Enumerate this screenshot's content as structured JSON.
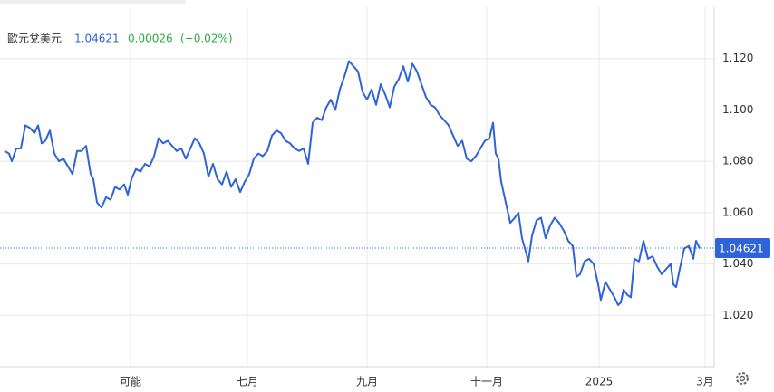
{
  "chart_data": {
    "type": "line",
    "title": "歐元兌美元",
    "last_price": 1.04621,
    "change": 0.00026,
    "change_pct": "(+0.02%)",
    "series": [
      {
        "name": "歐元兌美元",
        "color": "#2f63d8",
        "x": [
          5,
          10,
          13,
          18,
          23,
          28,
          33,
          38,
          42,
          46,
          50,
          55,
          60,
          65,
          70,
          75,
          80,
          85,
          90,
          95,
          100,
          103,
          107,
          112,
          117,
          122,
          127,
          132,
          137,
          141,
          145,
          150,
          155,
          160,
          165,
          170,
          175,
          180,
          185,
          190,
          195,
          200,
          205,
          210,
          215,
          220,
          225,
          230,
          235,
          240,
          245,
          250,
          255,
          260,
          265,
          270,
          275,
          280,
          285,
          290,
          295,
          300,
          305,
          310,
          315,
          320,
          325,
          330,
          335,
          340,
          345,
          350,
          355,
          360,
          365,
          370,
          375,
          380,
          385,
          390,
          395,
          400,
          405,
          410,
          415,
          420,
          425,
          430,
          435,
          440,
          445,
          450,
          455,
          460,
          465,
          470,
          475,
          480,
          485,
          490,
          495,
          500,
          505,
          510,
          515,
          520,
          525,
          530,
          535,
          540,
          544,
          547,
          550,
          553,
          558,
          563,
          568,
          572,
          576,
          580,
          583,
          587,
          592,
          597,
          602,
          607,
          612,
          617,
          622,
          627,
          632,
          636,
          640,
          645,
          650,
          655,
          660,
          663,
          668,
          673,
          678,
          682,
          685,
          688,
          692,
          696,
          700,
          705,
          710,
          715,
          720,
          725,
          730,
          735,
          740,
          743,
          746,
          750,
          755,
          760,
          765,
          768,
          772
        ],
        "values": [
          1.084,
          1.083,
          1.08,
          1.085,
          1.085,
          1.094,
          1.093,
          1.091,
          1.094,
          1.087,
          1.088,
          1.092,
          1.083,
          1.08,
          1.081,
          1.078,
          1.075,
          1.084,
          1.084,
          1.086,
          1.075,
          1.073,
          1.064,
          1.062,
          1.066,
          1.065,
          1.07,
          1.069,
          1.071,
          1.067,
          1.073,
          1.077,
          1.076,
          1.079,
          1.078,
          1.082,
          1.089,
          1.087,
          1.088,
          1.086,
          1.084,
          1.085,
          1.081,
          1.085,
          1.089,
          1.087,
          1.083,
          1.074,
          1.079,
          1.073,
          1.071,
          1.076,
          1.07,
          1.073,
          1.068,
          1.072,
          1.075,
          1.081,
          1.083,
          1.082,
          1.084,
          1.09,
          1.092,
          1.091,
          1.088,
          1.087,
          1.085,
          1.084,
          1.085,
          1.079,
          1.095,
          1.097,
          1.096,
          1.101,
          1.104,
          1.1,
          1.108,
          1.113,
          1.119,
          1.117,
          1.115,
          1.107,
          1.104,
          1.108,
          1.102,
          1.11,
          1.106,
          1.101,
          1.109,
          1.112,
          1.117,
          1.111,
          1.118,
          1.115,
          1.11,
          1.105,
          1.102,
          1.101,
          1.098,
          1.096,
          1.094,
          1.09,
          1.086,
          1.088,
          1.081,
          1.08,
          1.082,
          1.085,
          1.088,
          1.089,
          1.095,
          1.083,
          1.081,
          1.072,
          1.064,
          1.056,
          1.058,
          1.06,
          1.05,
          1.045,
          1.041,
          1.051,
          1.057,
          1.058,
          1.05,
          1.055,
          1.058,
          1.056,
          1.053,
          1.049,
          1.047,
          1.035,
          1.036,
          1.041,
          1.042,
          1.04,
          1.032,
          1.026,
          1.033,
          1.03,
          1.027,
          1.024,
          1.025,
          1.03,
          1.028,
          1.027,
          1.042,
          1.041,
          1.049,
          1.042,
          1.043,
          1.039,
          1.036,
          1.038,
          1.04,
          1.032,
          1.031,
          1.038,
          1.046,
          1.047,
          1.042,
          1.049,
          1.046
        ]
      }
    ],
    "xlim": [
      0,
      788
    ],
    "xticks": [
      {
        "value": 144,
        "label": "可能"
      },
      {
        "value": 273,
        "label": "七月"
      },
      {
        "value": 405,
        "label": "九月"
      },
      {
        "value": 537,
        "label": "十一月"
      },
      {
        "value": 661,
        "label": "2025"
      },
      {
        "value": 778,
        "label": "3月"
      }
    ],
    "ylim": [
      1.0,
      1.14
    ],
    "yticks": [
      {
        "value": 1.02,
        "label": "1.020"
      },
      {
        "value": 1.04,
        "label": "1.040"
      },
      {
        "value": 1.06,
        "label": "1.060"
      },
      {
        "value": 1.08,
        "label": "1.080"
      },
      {
        "value": 1.1,
        "label": "1.100"
      },
      {
        "value": 1.12,
        "label": "1.120"
      }
    ],
    "grid": true
  }
}
